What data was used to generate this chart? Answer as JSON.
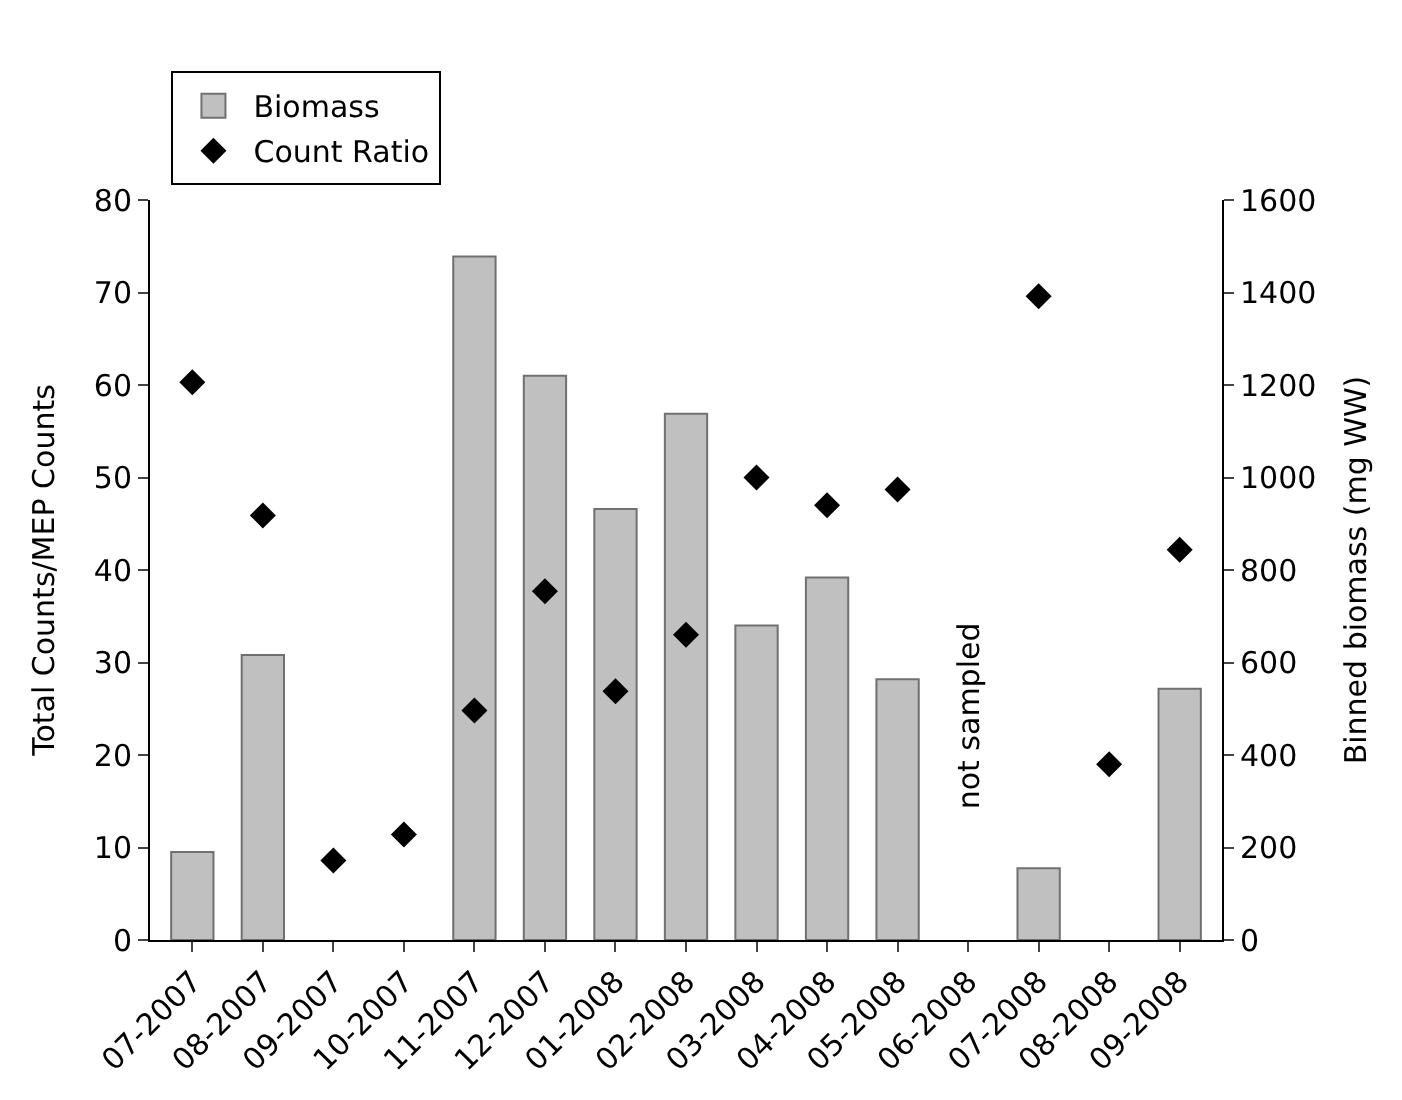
{
  "chart_data": {
    "type": "bar",
    "ylabel": "Total Counts/MEP Counts",
    "y2label": "Binned biomass (mg WW)",
    "categories": [
      "07-2007",
      "08-2007",
      "09-2007",
      "10-2007",
      "11-2007",
      "12-2007",
      "01-2008",
      "02-2008",
      "03-2008",
      "04-2008",
      "05-2008",
      "06-2008",
      "07-2008",
      "08-2008",
      "09-2008"
    ],
    "series": [
      {
        "name": "Biomass",
        "axis": "y2",
        "color": "#c0c0c0",
        "values": [
          190,
          616,
          null,
          null,
          1478,
          1220,
          932,
          1138,
          680,
          784,
          564,
          null,
          155,
          null,
          543
        ]
      },
      {
        "name": "Count Ratio",
        "type": "scatter",
        "marker": "diamond",
        "color": "#000000",
        "values": [
          60.3,
          45.9,
          8.6,
          11.4,
          24.8,
          37.7,
          26.9,
          33,
          50,
          47,
          48.7,
          null,
          69.6,
          19,
          42.2
        ]
      }
    ],
    "ylim": [
      0,
      80
    ],
    "yticks": [
      0,
      10,
      20,
      30,
      40,
      50,
      60,
      70,
      80
    ],
    "y2lim": [
      0,
      1600
    ],
    "y2ticks": [
      0,
      200,
      400,
      600,
      800,
      1000,
      1200,
      1400,
      1600
    ],
    "annotations": [
      "not sampled"
    ],
    "legend": "top left"
  }
}
